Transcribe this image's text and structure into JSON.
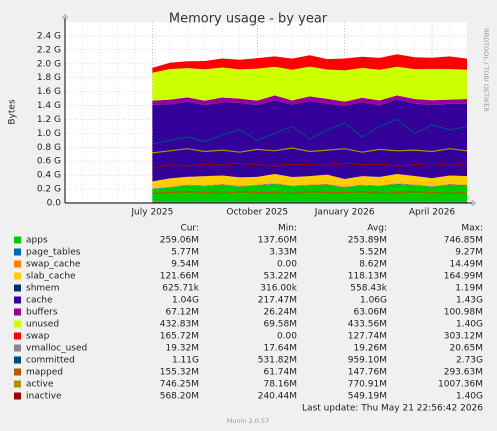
{
  "chart_data": {
    "type": "stacked-area",
    "title": "Memory usage - by year",
    "y_label": "Bytes",
    "side_text": "RRDTOOL / TOBI OETIKER",
    "footer": "Last update: Thu May 21 22:56:42 2026",
    "version": "Munin 2.0.57",
    "categories": [
      null,
      null,
      null,
      null,
      null,
      "July 2025",
      null,
      null,
      null,
      null,
      null,
      "October 2025",
      null,
      null,
      null,
      null,
      "January 2026",
      null,
      null,
      null,
      null,
      "April 2026",
      null,
      null
    ],
    "ylim": [
      0,
      2.6
    ],
    "yticks": [
      {
        "value": 0,
        "label": "0.0"
      },
      {
        "value": 0.2,
        "label": "0.2 G"
      },
      {
        "value": 0.4,
        "label": "0.4 G"
      },
      {
        "value": 0.6,
        "label": "0.6 G"
      },
      {
        "value": 0.8,
        "label": "0.8 G"
      },
      {
        "value": 1.0,
        "label": "1.0 G"
      },
      {
        "value": 1.2,
        "label": "1.2 G"
      },
      {
        "value": 1.4,
        "label": "1.4 G"
      },
      {
        "value": 1.6,
        "label": "1.6 G"
      },
      {
        "value": 1.8,
        "label": "1.8 G"
      },
      {
        "value": 2.0,
        "label": "2.0 G"
      },
      {
        "value": 2.2,
        "label": "2.2 G"
      },
      {
        "value": 2.4,
        "label": "2.4 G"
      }
    ],
    "grid": true,
    "series": [
      {
        "name": "apps",
        "color": "#00cc00",
        "stack": true,
        "values": [
          null,
          null,
          null,
          null,
          null,
          0.2,
          0.22,
          0.25,
          0.24,
          0.26,
          0.23,
          0.25,
          0.27,
          0.24,
          0.25,
          0.26,
          0.22,
          0.25,
          0.24,
          0.27,
          0.25,
          0.23,
          0.26,
          0.25
        ]
      },
      {
        "name": "page_tables",
        "color": "#0066b3",
        "stack": true,
        "values": [
          null,
          null,
          null,
          null,
          null,
          0.005,
          0.006,
          0.006,
          0.006,
          0.005,
          0.006,
          0.006,
          0.006,
          0.005,
          0.006,
          0.006,
          0.006,
          0.006,
          0.005,
          0.006,
          0.006,
          0.006,
          0.006,
          0.006
        ]
      },
      {
        "name": "swap_cache",
        "color": "#ff8000",
        "stack": true,
        "values": [
          null,
          null,
          null,
          null,
          null,
          0.005,
          0.008,
          0.01,
          0.009,
          0.01,
          0.012,
          0.009,
          0.01,
          0.008,
          0.01,
          0.011,
          0.009,
          0.01,
          0.009,
          0.01,
          0.012,
          0.01,
          0.009,
          0.01
        ]
      },
      {
        "name": "slab_cache",
        "color": "#ffcc00",
        "stack": true,
        "values": [
          null,
          null,
          null,
          null,
          null,
          0.1,
          0.12,
          0.11,
          0.13,
          0.12,
          0.12,
          0.11,
          0.13,
          0.12,
          0.12,
          0.13,
          0.11,
          0.12,
          0.12,
          0.13,
          0.12,
          0.11,
          0.12,
          0.12
        ]
      },
      {
        "name": "shmem",
        "color": "#003366",
        "stack": true,
        "values": [
          null,
          null,
          null,
          null,
          null,
          0.0006,
          0.0006,
          0.0006,
          0.0006,
          0.0006,
          0.0006,
          0.0006,
          0.0006,
          0.0006,
          0.0006,
          0.0006,
          0.0006,
          0.0006,
          0.0006,
          0.0006,
          0.0006,
          0.0006,
          0.0006,
          0.0006
        ]
      },
      {
        "name": "cache",
        "color": "#330099",
        "stack": true,
        "values": [
          null,
          null,
          null,
          null,
          null,
          1.1,
          1.06,
          1.08,
          1.02,
          1.05,
          1.07,
          1.03,
          1.06,
          1.04,
          1.08,
          1.02,
          1.05,
          1.06,
          1.03,
          1.07,
          1.04,
          1.05,
          1.03,
          1.04
        ]
      },
      {
        "name": "buffers",
        "color": "#990099",
        "stack": true,
        "values": [
          null,
          null,
          null,
          null,
          null,
          0.06,
          0.07,
          0.06,
          0.065,
          0.07,
          0.06,
          0.065,
          0.07,
          0.06,
          0.065,
          0.07,
          0.06,
          0.065,
          0.07,
          0.06,
          0.065,
          0.07,
          0.06,
          0.067
        ]
      },
      {
        "name": "unused",
        "color": "#ccff00",
        "stack": true,
        "values": [
          null,
          null,
          null,
          null,
          null,
          0.4,
          0.44,
          0.42,
          0.45,
          0.43,
          0.42,
          0.46,
          0.41,
          0.44,
          0.43,
          0.42,
          0.45,
          0.43,
          0.44,
          0.41,
          0.43,
          0.45,
          0.44,
          0.42
        ]
      },
      {
        "name": "swap",
        "color": "#ff0000",
        "stack": true,
        "values": [
          null,
          null,
          null,
          null,
          null,
          0.07,
          0.09,
          0.1,
          0.12,
          0.13,
          0.14,
          0.15,
          0.15,
          0.16,
          0.16,
          0.15,
          0.17,
          0.16,
          0.17,
          0.18,
          0.17,
          0.16,
          0.18,
          0.16
        ]
      },
      {
        "name": "vmalloc_used",
        "color": "#888888",
        "stack": false,
        "values": [
          null,
          null,
          null,
          null,
          null,
          0.018,
          0.018,
          0.018,
          0.018,
          0.018,
          0.018,
          0.018,
          0.018,
          0.018,
          0.018,
          0.018,
          0.018,
          0.018,
          0.018,
          0.018,
          0.018,
          0.018,
          0.018,
          0.018
        ]
      },
      {
        "name": "committed",
        "color": "#00487d",
        "stack": false,
        "values": [
          null,
          null,
          null,
          null,
          null,
          0.85,
          0.9,
          0.95,
          0.88,
          0.98,
          1.05,
          0.9,
          1.0,
          1.1,
          0.92,
          1.05,
          1.15,
          0.95,
          1.1,
          1.2,
          1.0,
          1.12,
          1.05,
          1.1
        ]
      },
      {
        "name": "mapped",
        "color": "#b35a00",
        "stack": false,
        "values": [
          null,
          null,
          null,
          null,
          null,
          0.14,
          0.15,
          0.16,
          0.15,
          0.14,
          0.16,
          0.15,
          0.15,
          0.14,
          0.16,
          0.15,
          0.15,
          0.16,
          0.14,
          0.15,
          0.16,
          0.15,
          0.14,
          0.15
        ]
      },
      {
        "name": "active",
        "color": "#b38f00",
        "stack": false,
        "values": [
          null,
          null,
          null,
          null,
          null,
          0.72,
          0.75,
          0.78,
          0.74,
          0.76,
          0.73,
          0.77,
          0.75,
          0.79,
          0.74,
          0.76,
          0.78,
          0.73,
          0.77,
          0.75,
          0.76,
          0.74,
          0.78,
          0.75
        ]
      },
      {
        "name": "inactive",
        "color": "#990000",
        "stack": false,
        "values": [
          null,
          null,
          null,
          null,
          null,
          0.5,
          0.55,
          0.53,
          0.56,
          0.54,
          0.57,
          0.55,
          0.53,
          0.56,
          0.55,
          0.54,
          0.57,
          0.55,
          0.56,
          0.53,
          0.55,
          0.57,
          0.54,
          0.55
        ]
      }
    ],
    "legend_stats": {
      "headers": [
        "Cur:",
        "Min:",
        "Avg:",
        "Max:"
      ],
      "rows": [
        [
          "259.06M",
          "137.60M",
          "253.89M",
          "746.85M"
        ],
        [
          "5.77M",
          "3.33M",
          "5.52M",
          "9.27M"
        ],
        [
          "9.54M",
          "0.00",
          "8.62M",
          "14.49M"
        ],
        [
          "121.66M",
          "53.22M",
          "118.13M",
          "164.99M"
        ],
        [
          "625.71k",
          "316.00k",
          "558.43k",
          "1.19M"
        ],
        [
          "1.04G",
          "217.47M",
          "1.06G",
          "1.43G"
        ],
        [
          "67.12M",
          "26.24M",
          "63.06M",
          "100.98M"
        ],
        [
          "432.83M",
          "69.58M",
          "433.56M",
          "1.40G"
        ],
        [
          "165.72M",
          "0.00",
          "127.74M",
          "303.12M"
        ],
        [
          "19.32M",
          "17.64M",
          "19.26M",
          "20.65M"
        ],
        [
          "1.11G",
          "531.82M",
          "959.10M",
          "2.73G"
        ],
        [
          "155.32M",
          "61.74M",
          "147.76M",
          "293.63M"
        ],
        [
          "746.25M",
          "78.16M",
          "770.91M",
          "1007.36M"
        ],
        [
          "568.20M",
          "240.44M",
          "549.19M",
          "1.40G"
        ]
      ]
    }
  }
}
